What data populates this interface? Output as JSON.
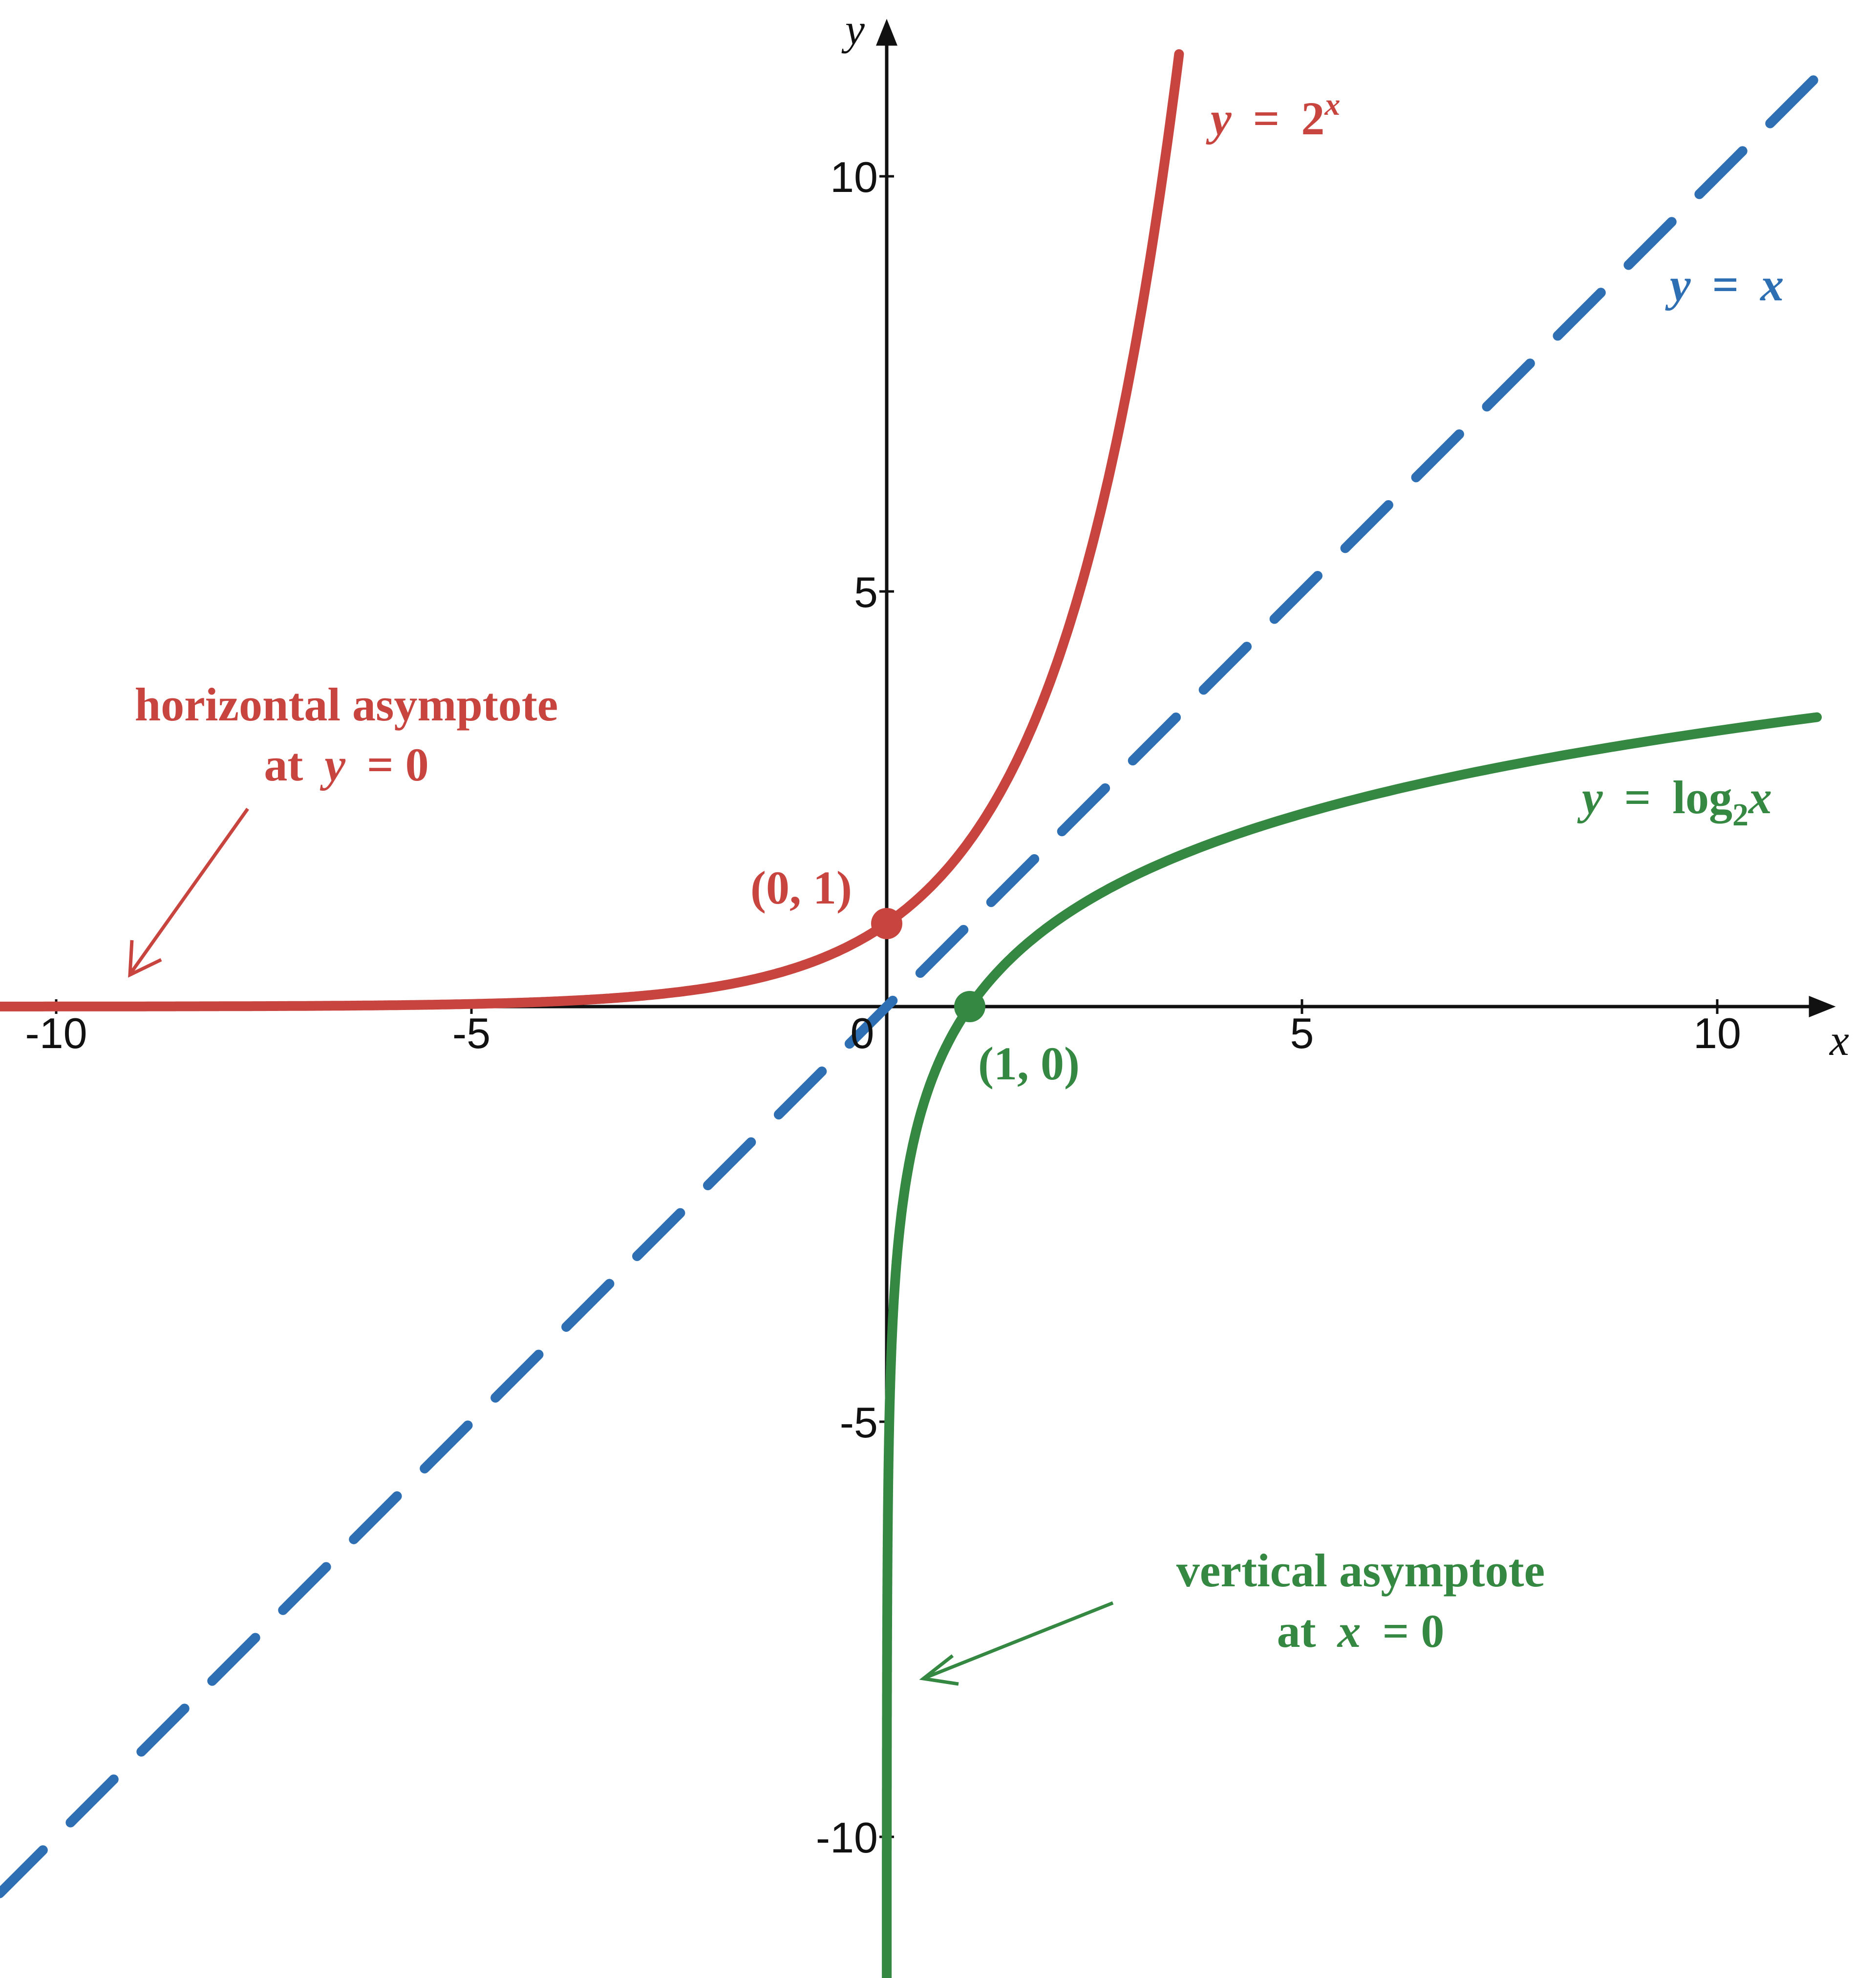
{
  "chart_data": {
    "type": "line",
    "xlabel": "x",
    "ylabel": "y",
    "xlim": [
      -10.68,
      11.9
    ],
    "ylim": [
      -11.8,
      12.1
    ],
    "x_ticks": [
      -10,
      -5,
      0,
      5,
      10
    ],
    "x_tick_labels": [
      "-10",
      "-5",
      "0",
      "5",
      "10"
    ],
    "y_ticks": [
      10,
      5,
      -5,
      -10
    ],
    "y_tick_labels": [
      "10",
      "5",
      "-5",
      "-10"
    ],
    "grid": false,
    "series": [
      {
        "name": "y = 2^x",
        "function": "exp2",
        "domain": [
          -10.68,
          3.52
        ],
        "color": "#C8443F",
        "style": "solid",
        "label": {
          "y": "y",
          "eq": "=",
          "base": "2",
          "exp": "x"
        }
      },
      {
        "name": "y = x",
        "function": "identity",
        "domain": [
          -10.68,
          11.2
        ],
        "color": "#2E6FB3",
        "style": "dashed",
        "label": {
          "y": "y",
          "eq": "=",
          "rhs": "x"
        }
      },
      {
        "name": "y = log2 x",
        "function": "log2",
        "domain": [
          0.00028,
          11.2
        ],
        "color": "#358842",
        "style": "solid",
        "label": {
          "y": "y",
          "eq": "=",
          "fn": "log",
          "sub": "2",
          "arg": "x"
        }
      }
    ],
    "points": [
      {
        "x": 0,
        "y": 1,
        "label": "(0, 1)",
        "color": "#C8443F"
      },
      {
        "x": 1,
        "y": 0,
        "label": "(1, 0)",
        "color": "#358842"
      }
    ],
    "annotations": [
      {
        "line1": "horizontal asymptote",
        "line2_prefix": "at",
        "line2_var": "y",
        "line2_rest": "= 0",
        "color": "#C8443F"
      },
      {
        "line1": "vertical asymptote",
        "line2_prefix": "at",
        "line2_var": "x",
        "line2_rest": "= 0",
        "color": "#358842"
      }
    ]
  }
}
